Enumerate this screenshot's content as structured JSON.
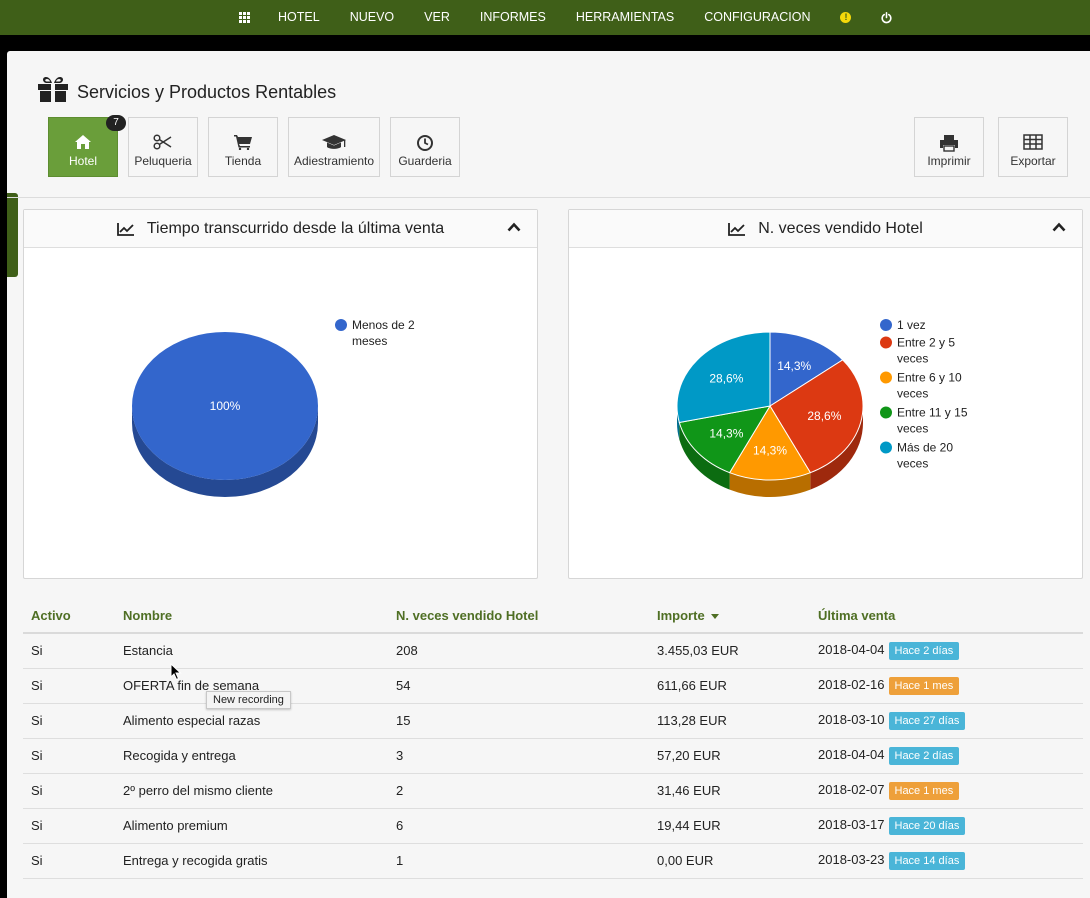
{
  "nav": {
    "items": [
      "HOTEL",
      "NUEVO",
      "VER",
      "INFORMES",
      "HERRAMIENTAS",
      "CONFIGURACION"
    ],
    "alert_label": "!"
  },
  "page": {
    "title": "Servicios y Productos Rentables"
  },
  "tiles": [
    {
      "label": "Hotel",
      "icon": "home-icon",
      "active": true,
      "badge": "7"
    },
    {
      "label": "Peluqueria",
      "icon": "scissors-icon"
    },
    {
      "label": "Tienda",
      "icon": "cart-icon"
    },
    {
      "label": "Adiestramiento",
      "icon": "graduation-cap-icon"
    },
    {
      "label": "Guarderia",
      "icon": "clock-icon"
    }
  ],
  "actions": [
    {
      "label": "Imprimir",
      "icon": "printer-icon"
    },
    {
      "label": "Exportar",
      "icon": "table-icon"
    }
  ],
  "panels": [
    {
      "title": "Tiempo transcurrido desde la última venta"
    },
    {
      "title": "N. veces vendido Hotel"
    }
  ],
  "chart_data": [
    {
      "type": "pie",
      "title": "Tiempo transcurrido desde la última venta",
      "categories": [
        "Menos de 2 meses"
      ],
      "values": [
        100
      ],
      "labels": [
        "100%"
      ],
      "colors": [
        "#3366cc"
      ],
      "legend_lines": [
        [
          "Menos de 2",
          "meses"
        ]
      ],
      "legend": "right"
    },
    {
      "type": "pie",
      "title": "N. veces vendido Hotel",
      "categories": [
        "1 vez",
        "Entre 2 y 5 veces",
        "Entre 6 y 10 veces",
        "Entre 11 y 15 veces",
        "Más de 20 veces"
      ],
      "values": [
        14.3,
        28.6,
        14.3,
        14.3,
        28.6
      ],
      "labels": [
        "14,3%",
        "28,6%",
        "14,3%",
        "14,3%",
        "28,6%"
      ],
      "colors": [
        "#3366cc",
        "#dc3912",
        "#ff9900",
        "#109618",
        "#0099c6"
      ],
      "legend_lines": [
        [
          "1 vez"
        ],
        [
          "Entre 2 y 5",
          "veces"
        ],
        [
          "Entre 6 y 10",
          "veces"
        ],
        [
          "Entre 11 y 15",
          "veces"
        ],
        [
          "Más de 20",
          "veces"
        ]
      ],
      "legend": "right"
    }
  ],
  "table": {
    "headers": [
      "Activo",
      "Nombre",
      "N. veces vendido Hotel",
      "Importe",
      "Última venta"
    ],
    "rows": [
      [
        "Si",
        "Estancia",
        "208",
        "3.455,03 EUR",
        "2018-04-04",
        "Hace 2 días",
        "blue"
      ],
      [
        "Si",
        "OFERTA fin de semana",
        "54",
        "611,66 EUR",
        "2018-02-16",
        "Hace 1 mes",
        "orange"
      ],
      [
        "Si",
        "Alimento especial razas",
        "15",
        "113,28 EUR",
        "2018-03-10",
        "Hace 27 días",
        "blue"
      ],
      [
        "Si",
        "Recogida y entrega",
        "3",
        "57,20 EUR",
        "2018-04-04",
        "Hace 2 días",
        "blue"
      ],
      [
        "Si",
        "2º perro del mismo cliente",
        "2",
        "31,46 EUR",
        "2018-02-07",
        "Hace 1 mes",
        "orange"
      ],
      [
        "Si",
        "Alimento premium",
        "6",
        "19,44 EUR",
        "2018-03-17",
        "Hace 20 días",
        "blue"
      ],
      [
        "Si",
        "Entrega y recogida gratis",
        "1",
        "0,00 EUR",
        "2018-03-23",
        "Hace 14 días",
        "blue"
      ]
    ]
  },
  "tooltip": "New recording"
}
